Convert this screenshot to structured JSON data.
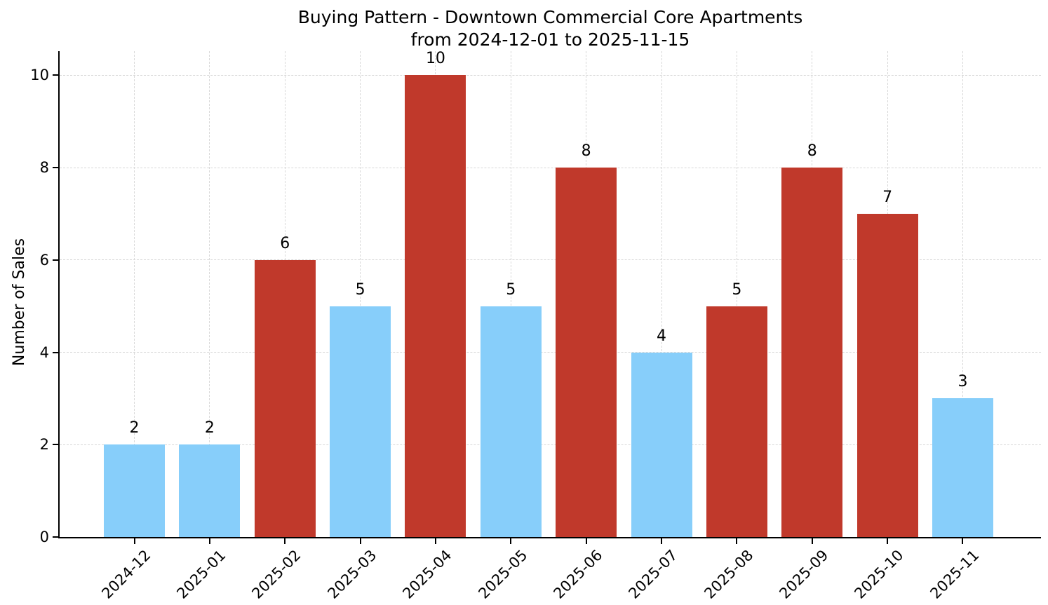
{
  "chart_data": {
    "type": "bar",
    "title_line1": "Buying Pattern - Downtown Commercial Core Apartments",
    "title_line2": "from 2024-12-01 to 2025-11-15",
    "title": "Buying Pattern - Downtown Commercial Core Apartments from 2024-12-01 to 2025-11-15",
    "xlabel": "",
    "ylabel": "Number of Sales",
    "categories": [
      "2024-12",
      "2025-01",
      "2025-02",
      "2025-03",
      "2025-04",
      "2025-05",
      "2025-06",
      "2025-07",
      "2025-08",
      "2025-09",
      "2025-10",
      "2025-11"
    ],
    "values": [
      2,
      2,
      6,
      5,
      10,
      5,
      8,
      4,
      5,
      8,
      7,
      3
    ],
    "bar_colors": [
      "#87CEFA",
      "#87CEFA",
      "#C0392B",
      "#87CEFA",
      "#C0392B",
      "#87CEFA",
      "#C0392B",
      "#87CEFA",
      "#C0392B",
      "#C0392B",
      "#C0392B",
      "#87CEFA"
    ],
    "value_labels": [
      "2",
      "2",
      "6",
      "5",
      "10",
      "5",
      "8",
      "4",
      "5",
      "8",
      "7",
      "3"
    ],
    "yticks": [
      0,
      2,
      4,
      6,
      8,
      10
    ],
    "ylim": [
      0,
      10.52
    ],
    "grid": true,
    "legend": null,
    "colors": {
      "blue_bar": "#87CEFA",
      "red_bar": "#C0392B",
      "grid": "#d8d8d8",
      "axis": "#000000",
      "text": "#000000",
      "background": "#ffffff"
    }
  }
}
